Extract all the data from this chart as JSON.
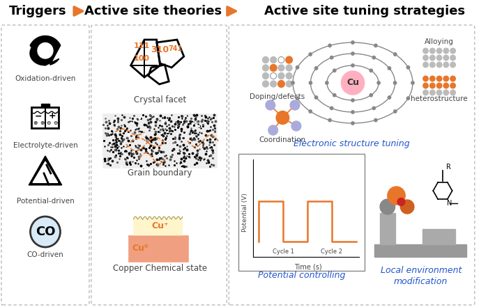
{
  "title_parts": [
    "Triggers",
    "Active site theories",
    "Active site tuning strategies"
  ],
  "arrow_color": "#E8762A",
  "bg_color": "#FFFFFF",
  "text_color": "#444444",
  "blue_color": "#2255CC",
  "orange_color": "#E8762A",
  "panel1_labels": [
    "Oxidation-driven",
    "Electrolyte-driven",
    "Potential-driven",
    "CO-driven"
  ],
  "panel2_labels": [
    "Crystal facet",
    "Grain boundary",
    "Copper Chemical state"
  ],
  "panel3_top_title": "Electronic structure tuning",
  "panel3_bot_label": "Potential controlling",
  "panel3_bot_right_label": "Local environment\nmodification",
  "facet_labels": [
    "111",
    "310",
    "100",
    "741"
  ],
  "cycle_labels": [
    "Cycle 1",
    "Cycle 2"
  ],
  "axis_x_label": "Time (s)",
  "axis_y_label": "Potential (V)",
  "doping_label": "Doping/defects",
  "alloying_label": "Alloying",
  "coord_label": "Coordination",
  "hetero_label": "heterostructure"
}
